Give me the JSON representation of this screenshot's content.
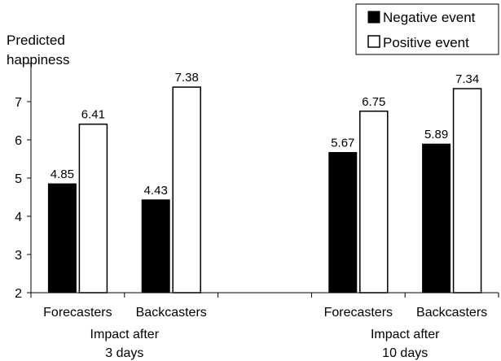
{
  "chart_data": {
    "type": "bar",
    "ylabel_lines": [
      "Predicted",
      "happiness"
    ],
    "ylim": [
      2,
      8
    ],
    "yticks": [
      2,
      3,
      4,
      5,
      6,
      7
    ],
    "grid": false,
    "legend_position": "top-right",
    "groups": [
      {
        "label_lines": [
          "Impact after",
          "3 days"
        ],
        "categories": [
          "Forecasters",
          "Backcasters"
        ]
      },
      {
        "label_lines": [
          "Impact after",
          "10 days"
        ],
        "categories": [
          "Forecasters",
          "Backcasters"
        ]
      }
    ],
    "series": [
      {
        "name": "Negative event",
        "color": "#000000",
        "values": [
          4.85,
          4.43,
          5.67,
          5.89
        ]
      },
      {
        "name": "Positive event",
        "color": "#ffffff",
        "values": [
          6.41,
          7.38,
          6.75,
          7.34
        ]
      }
    ]
  }
}
